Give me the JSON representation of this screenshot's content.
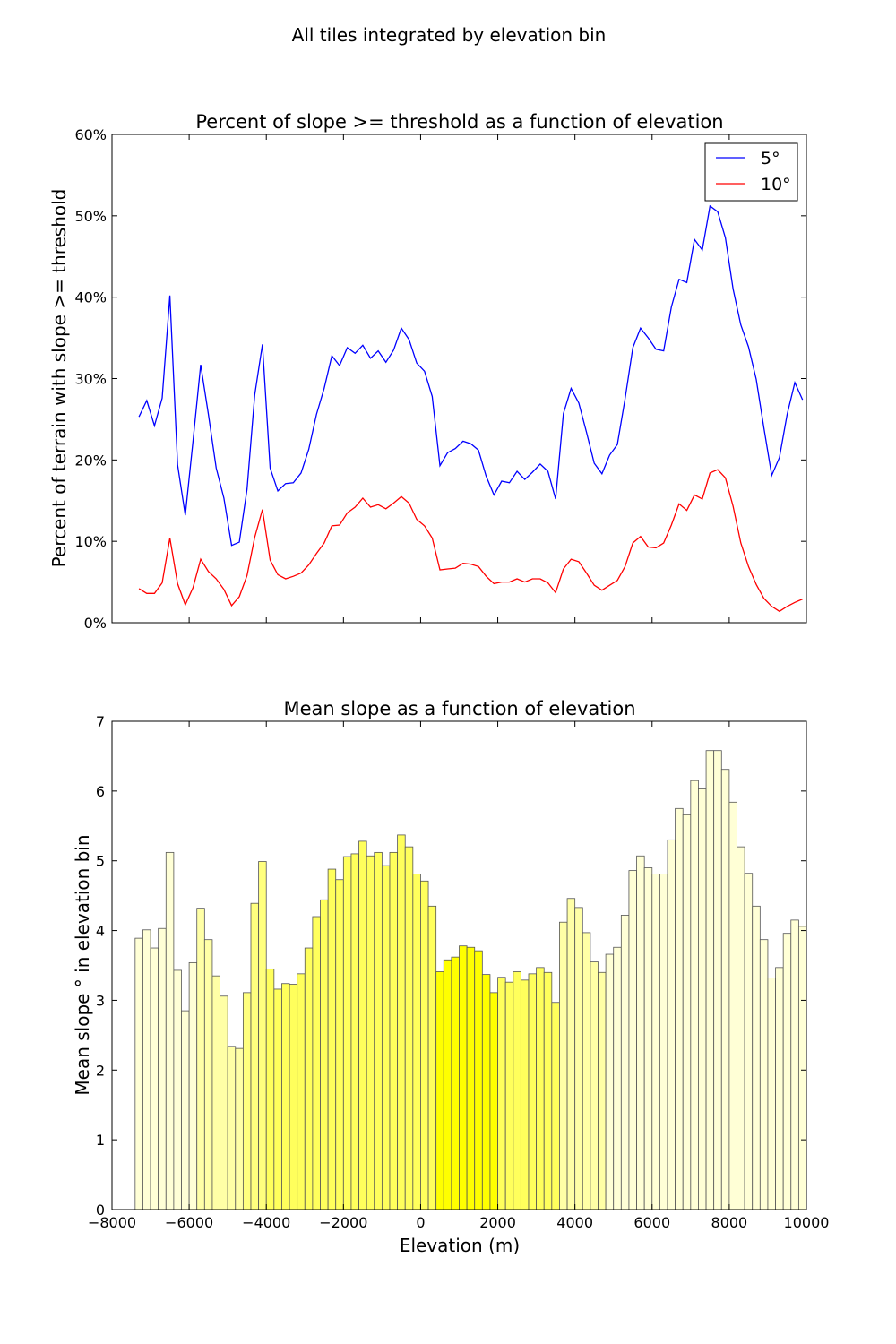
{
  "figure": {
    "suptitle": "All tiles integrated by elevation bin"
  },
  "chart_data": [
    {
      "type": "line",
      "title": "Percent of slope >= threshold as a function of elevation",
      "xlabel": "",
      "ylabel": "Percent of terrain with slope >= threshold",
      "xlim": [
        -8000,
        10000
      ],
      "ylim": [
        0,
        60
      ],
      "xticks": [
        -8000,
        -6000,
        -4000,
        -2000,
        0,
        2000,
        4000,
        6000,
        8000,
        10000
      ],
      "yticks": [
        0,
        10,
        20,
        30,
        40,
        50,
        60
      ],
      "ytick_labels": [
        "0%",
        "10%",
        "20%",
        "30%",
        "40%",
        "50%",
        "60%"
      ],
      "legend": "top-right",
      "x": [
        -7300,
        -7100,
        -6900,
        -6700,
        -6500,
        -6300,
        -6100,
        -5900,
        -5700,
        -5500,
        -5300,
        -5100,
        -4900,
        -4700,
        -4500,
        -4300,
        -4100,
        -3900,
        -3700,
        -3500,
        -3300,
        -3100,
        -2900,
        -2700,
        -2500,
        -2300,
        -2100,
        -1900,
        -1700,
        -1500,
        -1300,
        -1100,
        -900,
        -700,
        -500,
        -300,
        -100,
        100,
        300,
        500,
        700,
        900,
        1100,
        1300,
        1500,
        1700,
        1900,
        2100,
        2300,
        2500,
        2700,
        2900,
        3100,
        3300,
        3500,
        3700,
        3900,
        4100,
        4300,
        4500,
        4700,
        4900,
        5100,
        5300,
        5500,
        5700,
        5900,
        6100,
        6300,
        6500,
        6700,
        6900,
        7100,
        7300,
        7500,
        7700,
        7900,
        8100,
        8300,
        8500,
        8700,
        8900,
        9100,
        9300,
        9500,
        9700,
        9900
      ],
      "series": [
        {
          "name": "5°",
          "color": "#0000ff",
          "values": [
            25.3,
            27.3,
            24.2,
            27.6,
            40.2,
            19.4,
            13.2,
            22.3,
            31.7,
            25.6,
            19.0,
            15.3,
            9.5,
            9.9,
            16.4,
            28.0,
            34.2,
            19.0,
            16.2,
            17.1,
            17.2,
            18.4,
            21.3,
            25.6,
            28.8,
            32.8,
            31.6,
            33.8,
            33.1,
            34.1,
            32.5,
            33.4,
            32.0,
            33.5,
            36.2,
            34.8,
            31.9,
            30.9,
            27.8,
            19.3,
            20.9,
            21.4,
            22.3,
            22.0,
            21.2,
            18.0,
            15.7,
            17.4,
            17.2,
            18.6,
            17.6,
            18.5,
            19.5,
            18.6,
            15.2,
            25.7,
            28.8,
            27.0,
            23.4,
            19.6,
            18.3,
            20.6,
            21.9,
            27.5,
            33.8,
            36.2,
            35.0,
            33.6,
            33.4,
            38.8,
            42.2,
            41.8,
            47.1,
            45.8,
            51.2,
            50.5,
            47.3,
            41.0,
            36.6,
            33.9,
            29.9,
            23.9,
            18.1,
            20.3,
            25.6,
            29.5,
            27.4
          ]
        },
        {
          "name": "10°",
          "color": "#ff0000",
          "values": [
            4.2,
            3.6,
            3.6,
            4.9,
            10.4,
            4.8,
            2.2,
            4.3,
            7.8,
            6.3,
            5.4,
            4.1,
            2.1,
            3.2,
            5.8,
            10.5,
            13.9,
            7.7,
            5.9,
            5.4,
            5.7,
            6.1,
            7.1,
            8.5,
            9.8,
            11.9,
            12.0,
            13.5,
            14.2,
            15.3,
            14.2,
            14.5,
            14.0,
            14.7,
            15.5,
            14.7,
            12.7,
            11.9,
            10.4,
            6.5,
            6.6,
            6.7,
            7.3,
            7.2,
            6.9,
            5.7,
            4.8,
            5.0,
            5.0,
            5.4,
            5.0,
            5.4,
            5.4,
            4.9,
            3.7,
            6.6,
            7.8,
            7.5,
            6.1,
            4.6,
            4.0,
            4.6,
            5.2,
            6.9,
            9.8,
            10.6,
            9.3,
            9.2,
            9.8,
            12.0,
            14.6,
            13.8,
            15.7,
            15.2,
            18.4,
            18.8,
            17.8,
            14.3,
            9.8,
            6.9,
            4.7,
            3.0,
            2.0,
            1.4,
            2.0,
            2.5,
            2.9
          ]
        }
      ]
    },
    {
      "type": "bar",
      "title": "Mean slope as a function of elevation",
      "xlabel": "Elevation (m)",
      "ylabel": "Mean slope ° in elevation bin",
      "xlim": [
        -8000,
        10000
      ],
      "ylim": [
        0,
        7
      ],
      "xticks": [
        -8000,
        -6000,
        -4000,
        -2000,
        0,
        2000,
        4000,
        6000,
        8000,
        10000
      ],
      "yticks": [
        0,
        1,
        2,
        3,
        4,
        5,
        6,
        7
      ],
      "bin_width": 200,
      "bin_starts": [
        -7400,
        -7200,
        -7000,
        -6800,
        -6600,
        -6400,
        -6200,
        -6000,
        -5800,
        -5600,
        -5400,
        -5200,
        -5000,
        -4800,
        -4600,
        -4400,
        -4200,
        -4000,
        -3800,
        -3600,
        -3400,
        -3200,
        -3000,
        -2800,
        -2600,
        -2400,
        -2200,
        -2000,
        -1800,
        -1600,
        -1400,
        -1200,
        -1000,
        -800,
        -600,
        -400,
        -200,
        0,
        200,
        400,
        600,
        800,
        1000,
        1200,
        1400,
        1600,
        1800,
        2000,
        2200,
        2400,
        2600,
        2800,
        3000,
        3200,
        3400,
        3600,
        3800,
        4000,
        4200,
        4400,
        4600,
        4800,
        5000,
        5200,
        5400,
        5600,
        5800,
        6000,
        6200,
        6400,
        6600,
        6800,
        7000,
        7200,
        7400,
        7600,
        7800,
        8000,
        8200,
        8400,
        8600,
        8800,
        9000,
        9200,
        9400,
        9600,
        9800
      ],
      "values": [
        3.89,
        4.01,
        3.75,
        4.03,
        5.12,
        3.43,
        2.85,
        3.54,
        4.32,
        3.87,
        3.35,
        3.06,
        2.34,
        2.31,
        3.11,
        4.39,
        4.99,
        3.45,
        3.16,
        3.24,
        3.23,
        3.38,
        3.75,
        4.2,
        4.44,
        4.88,
        4.73,
        5.06,
        5.1,
        5.28,
        5.07,
        5.12,
        4.93,
        5.12,
        5.37,
        5.2,
        4.81,
        4.71,
        4.35,
        3.41,
        3.58,
        3.62,
        3.78,
        3.76,
        3.71,
        3.37,
        3.11,
        3.33,
        3.26,
        3.41,
        3.29,
        3.38,
        3.47,
        3.4,
        2.97,
        4.12,
        4.46,
        4.33,
        3.97,
        3.55,
        3.4,
        3.66,
        3.76,
        4.22,
        4.86,
        5.07,
        4.9,
        4.81,
        4.81,
        5.3,
        5.75,
        5.66,
        6.15,
        6.03,
        6.58,
        6.58,
        6.31,
        5.84,
        5.2,
        4.82,
        4.35,
        3.87,
        3.32,
        3.47,
        3.96,
        4.15,
        4.06
      ],
      "bar_colors": [
        "#ffffd6",
        "#ffffd6",
        "#ffffd6",
        "#ffffd6",
        "#ffffd6",
        "#ffffd6",
        "#ffffd6",
        "#ffffd6",
        "#ffffa6",
        "#ffffa6",
        "#ffffa6",
        "#ffffa6",
        "#ffffa6",
        "#ffffa6",
        "#ffff7e",
        "#ffff7e",
        "#ffff7e",
        "#ffff5c",
        "#ffff5c",
        "#ffff5c",
        "#ffff5c",
        "#ffff5c",
        "#ffff5c",
        "#ffff5c",
        "#ffff5c",
        "#ffff5c",
        "#ffff5c",
        "#ffff5c",
        "#ffff5c",
        "#ffff5c",
        "#ffff5c",
        "#ffff5c",
        "#ffff5c",
        "#ffff5c",
        "#ffff5c",
        "#ffff5c",
        "#ffff5c",
        "#ffff5c",
        "#ffff5c",
        "#ffff00",
        "#ffff00",
        "#ffff00",
        "#ffff00",
        "#ffff00",
        "#ffff00",
        "#ffff00",
        "#ffff00",
        "#ffff5c",
        "#ffff5c",
        "#ffff5c",
        "#ffff5c",
        "#ffff5c",
        "#ffff5c",
        "#ffff5c",
        "#ffff5c",
        "#ffffa6",
        "#ffffa6",
        "#ffffa6",
        "#ffffa6",
        "#ffffa6",
        "#ffffa6",
        "#ffffd6",
        "#ffffd6",
        "#ffffd6",
        "#ffffd6",
        "#ffffd6",
        "#ffffd6",
        "#ffffd6",
        "#ffffd6",
        "#ffffd6",
        "#ffffd6",
        "#ffffd6",
        "#ffffd6",
        "#ffffd6",
        "#ffffd6",
        "#ffffd6",
        "#ffffd6",
        "#ffffd6",
        "#ffffd6",
        "#ffffd6",
        "#ffffd6",
        "#ffffd6",
        "#ffffd6",
        "#ffffd6",
        "#ffffd6",
        "#ffffd6",
        "#ffffd6"
      ]
    }
  ]
}
